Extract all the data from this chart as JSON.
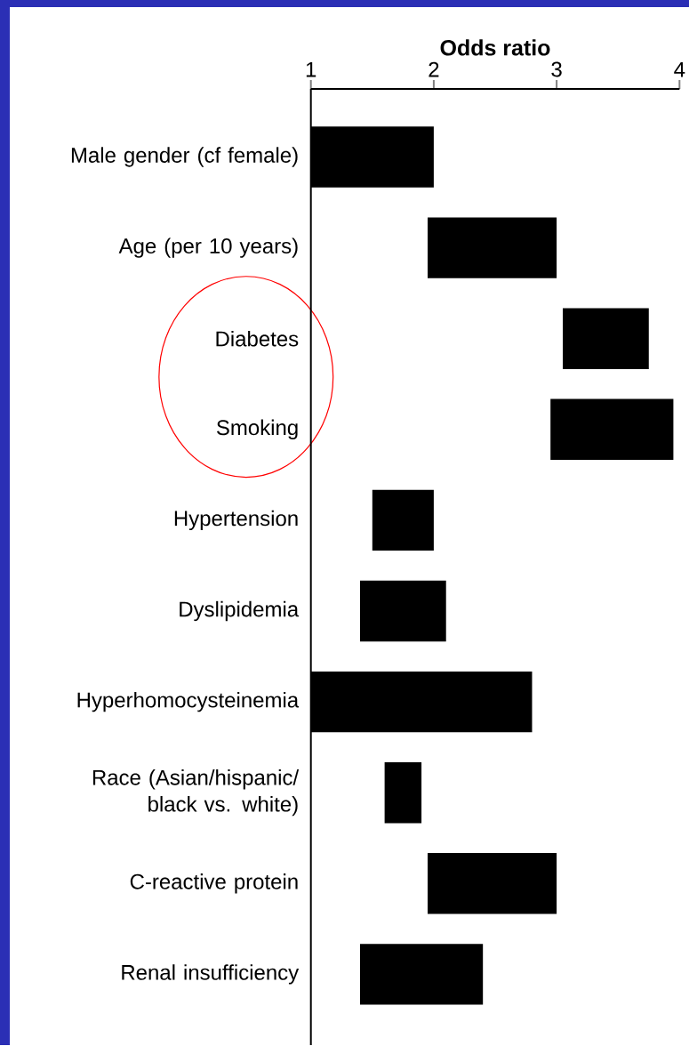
{
  "chart_data": {
    "type": "bar",
    "orientation": "horizontal",
    "xlabel": "Odds ratio",
    "categories": [
      "Male gender (cf female)",
      "Age (per 10 years)",
      "Diabetes",
      "Smoking",
      "Hypertension",
      "Dyslipidemia",
      "Hyperhomocysteinemia",
      "Race (Asian/hispanic/ black vs. white)",
      "C-reactive protein",
      "Renal insufficiency"
    ],
    "base": [
      1.0,
      1.95,
      3.05,
      2.95,
      1.5,
      1.4,
      1.0,
      1.6,
      1.95,
      1.4
    ],
    "values": [
      1.0,
      1.05,
      0.7,
      1.0,
      0.5,
      0.7,
      1.8,
      0.3,
      1.05,
      1.0
    ],
    "color": "#000000",
    "xlim": [
      1,
      4
    ],
    "xticks": [
      1,
      2,
      3,
      4
    ]
  }
}
